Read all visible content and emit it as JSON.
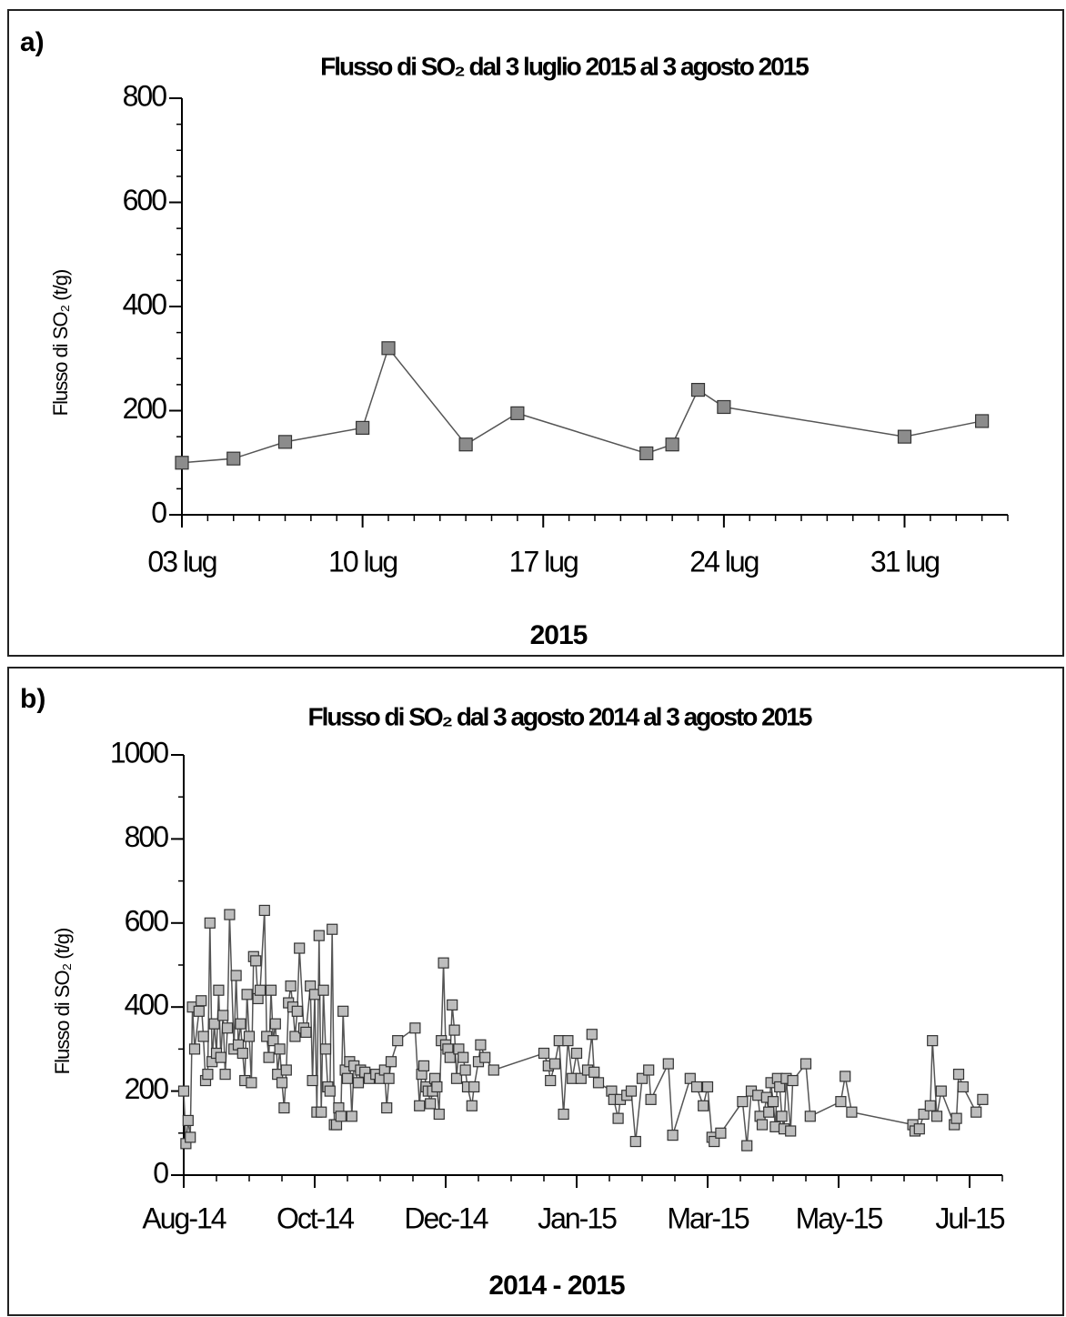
{
  "chart_data": [
    {
      "type": "line",
      "panel_label": "a)",
      "title": "Flusso di SO₂ dal 3 luglio 2015 al 3 agosto 2015",
      "xlabel": "2015",
      "ylabel": "Flusso di SO₂ (t/g)",
      "x": [
        0,
        2,
        4,
        7,
        8,
        11,
        13,
        18,
        19,
        20,
        21,
        28,
        31
      ],
      "values": [
        100,
        108,
        140,
        167,
        320,
        135,
        195,
        118,
        135,
        240,
        207,
        150,
        180
      ],
      "color": "#8c8c8c",
      "line_color": "#555555",
      "marker": "square",
      "xlim": [
        0,
        32
      ],
      "xticks": [
        {
          "value": 0,
          "label": "03 lug"
        },
        {
          "value": 7,
          "label": "10 lug"
        },
        {
          "value": 14,
          "label": "17 lug"
        },
        {
          "value": 21,
          "label": "24 lug"
        },
        {
          "value": 28,
          "label": "31 lug"
        }
      ],
      "x_minor_step": 1,
      "ylim": [
        0,
        800
      ],
      "yticks": [
        0,
        200,
        400,
        600,
        800
      ],
      "y_minor_step": 50
    },
    {
      "type": "line",
      "panel_label": "b)",
      "title": "Flusso di SO₂ dal 3 agosto 2014 al 3 agosto 2015",
      "xlabel": "2014 - 2015",
      "ylabel": "Flusso di SO₂ (t/g)",
      "x": [
        0,
        1,
        2,
        3,
        4,
        5,
        7,
        8,
        9,
        10,
        11,
        12,
        13,
        14,
        15,
        16,
        17,
        18,
        19,
        20,
        21,
        23,
        24,
        25,
        26,
        27,
        28,
        29,
        30,
        31,
        32,
        33,
        34,
        35,
        37,
        38,
        39,
        40,
        41,
        42,
        43,
        44,
        45,
        46,
        47,
        48,
        49,
        50,
        51,
        52,
        53,
        55,
        56,
        58,
        59,
        60,
        61,
        62,
        63,
        64,
        65,
        66,
        67,
        68,
        69,
        70,
        71,
        72,
        73,
        74,
        75,
        76,
        77,
        78,
        80,
        81,
        83,
        85,
        88,
        90,
        92,
        93,
        94,
        95,
        98,
        106,
        108,
        109,
        110,
        111,
        112,
        113,
        114,
        115,
        116,
        117,
        118,
        119,
        120,
        121,
        122,
        123,
        124,
        125,
        126,
        128,
        129,
        130,
        132,
        133,
        135,
        136,
        138,
        142,
        165,
        167,
        168,
        170,
        172,
        174,
        176,
        178,
        180,
        182,
        185,
        187,
        188,
        190,
        196,
        197,
        199,
        200,
        203,
        205,
        207,
        210,
        213,
        214,
        222,
        224,
        232,
        235,
        238,
        240,
        242,
        243,
        246,
        256,
        258,
        260,
        263,
        264,
        265,
        267,
        268,
        269,
        270,
        271,
        272,
        273,
        274,
        275,
        276,
        278,
        279,
        285,
        287,
        301,
        303,
        306,
        334,
        335,
        337,
        339,
        342,
        343,
        345,
        347,
        353,
        354,
        355,
        357,
        363,
        366
      ],
      "values": [
        200,
        75,
        130,
        90,
        400,
        300,
        390,
        415,
        330,
        225,
        240,
        600,
        270,
        360,
        290,
        440,
        280,
        380,
        240,
        350,
        620,
        300,
        475,
        310,
        360,
        290,
        225,
        430,
        330,
        220,
        520,
        510,
        420,
        440,
        630,
        330,
        280,
        440,
        320,
        360,
        240,
        300,
        220,
        160,
        250,
        410,
        450,
        400,
        330,
        390,
        540,
        350,
        340,
        450,
        225,
        430,
        150,
        570,
        150,
        440,
        300,
        210,
        200,
        585,
        120,
        120,
        160,
        140,
        390,
        250,
        230,
        270,
        140,
        260,
        220,
        250,
        245,
        230,
        240,
        230,
        250,
        160,
        230,
        270,
        320,
        350,
        165,
        240,
        260,
        210,
        200,
        170,
        200,
        230,
        210,
        145,
        320,
        505,
        310,
        300,
        280,
        405,
        345,
        230,
        300,
        280,
        250,
        210,
        165,
        210,
        270,
        310,
        280,
        250,
        290,
        260,
        225,
        265,
        320,
        145,
        320,
        230,
        290,
        230,
        250,
        335,
        245,
        220,
        200,
        180,
        135,
        180,
        190,
        200,
        80,
        230,
        250,
        180,
        265,
        95,
        230,
        210,
        165,
        210,
        90,
        80,
        100,
        175,
        70,
        200,
        190,
        140,
        120,
        185,
        150,
        220,
        175,
        115,
        230,
        210,
        140,
        110,
        230,
        105,
        225,
        265,
        140,
        175,
        235,
        150,
        120,
        105,
        110,
        145,
        165,
        320,
        140,
        200,
        120,
        135,
        240,
        210,
        150,
        180
      ],
      "color": "#bdbdbd",
      "line_color": "#555555",
      "marker": "square",
      "xlim": [
        0,
        375
      ],
      "xticks": [
        {
          "value": 0,
          "label": "Aug-14"
        },
        {
          "value": 60,
          "label": "Oct-14"
        },
        {
          "value": 120,
          "label": "Dec-14"
        },
        {
          "value": 180,
          "label": "Jan-15"
        },
        {
          "value": 240,
          "label": "Mar-15"
        },
        {
          "value": 300,
          "label": "May-15"
        },
        {
          "value": 360,
          "label": "Jul-15"
        }
      ],
      "x_minor_step": 15,
      "ylim": [
        0,
        1000
      ],
      "yticks": [
        0,
        200,
        400,
        600,
        800,
        1000
      ],
      "y_minor_step": 100
    }
  ]
}
